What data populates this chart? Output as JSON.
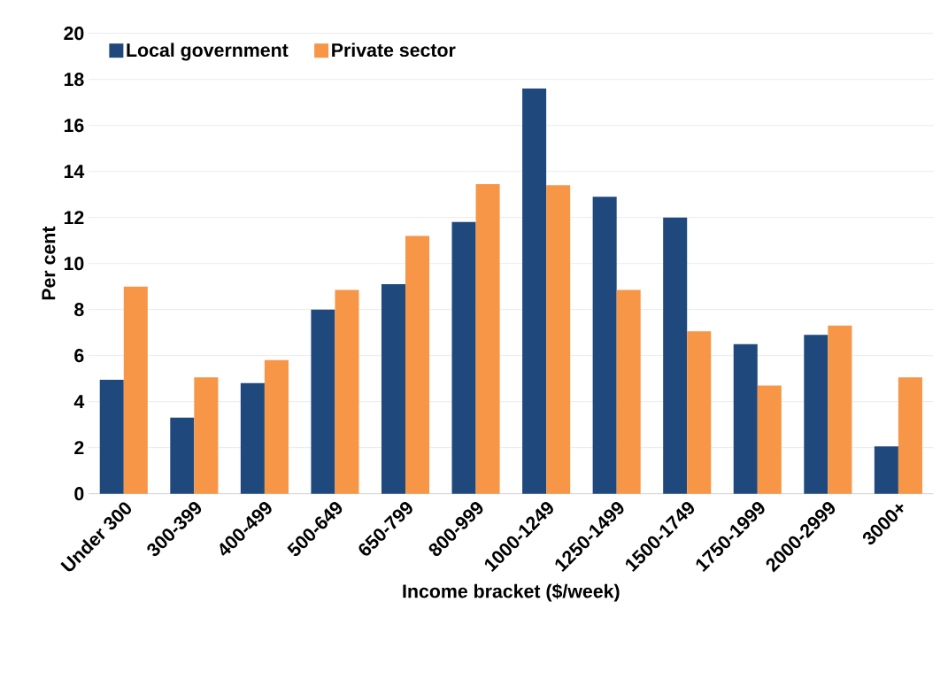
{
  "chart_data": {
    "type": "bar",
    "xlabel": "Income bracket ($/week)",
    "ylabel": "Per cent",
    "categories": [
      "Under 300",
      "300-399",
      "400-499",
      "500-649",
      "650-799",
      "800-999",
      "1000-1249",
      "1250-1499",
      "1500-1749",
      "1750-1999",
      "2000-2999",
      "3000+"
    ],
    "series": [
      {
        "name": "Local government",
        "color": "#1f497d",
        "values": [
          4.95,
          3.3,
          4.8,
          8.0,
          9.1,
          11.8,
          17.6,
          12.9,
          12.0,
          6.5,
          6.9,
          2.05
        ]
      },
      {
        "name": "Private sector",
        "color": "#f79646",
        "values": [
          9.0,
          5.05,
          5.8,
          8.85,
          11.2,
          13.45,
          13.4,
          8.85,
          7.05,
          4.7,
          7.3,
          5.05
        ]
      }
    ],
    "ylim": [
      0,
      20
    ],
    "yticks": [
      0,
      2,
      4,
      6,
      8,
      10,
      12,
      14,
      16,
      18,
      20
    ],
    "grid": "y",
    "legend": "top left"
  }
}
